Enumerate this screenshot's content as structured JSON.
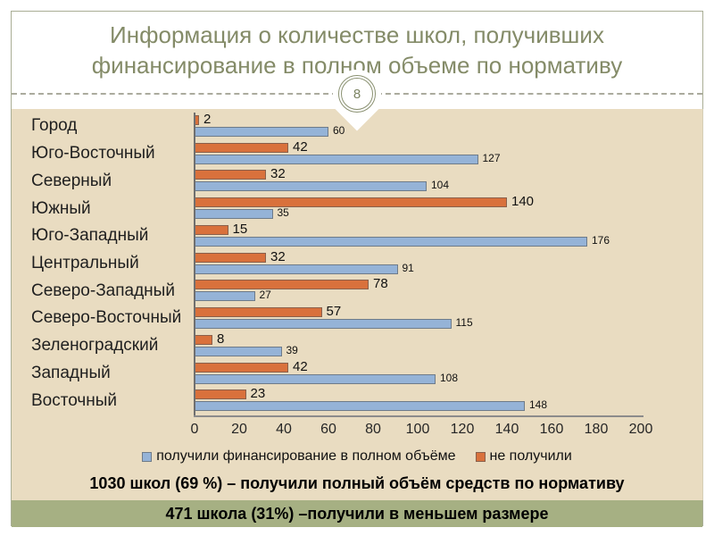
{
  "slide": {
    "title_line1": "Информация о количестве школ, получивших",
    "title_line2": "финансирование в полном объеме по нормативу",
    "page_number": "8"
  },
  "chart_data": {
    "type": "bar",
    "orientation": "horizontal",
    "title": "",
    "categories": [
      "Город",
      "Юго-Восточный",
      "Северный",
      "Южный",
      "Юго-Западный",
      "Центральный",
      "Северо-Западный",
      "Северо-Восточный",
      "Зеленоградский",
      "Западный",
      "Восточный"
    ],
    "series": [
      {
        "name": "получили финансирование в полном объёме",
        "color": "#95B3D7",
        "values": [
          60,
          127,
          104,
          35,
          176,
          91,
          27,
          115,
          39,
          108,
          148
        ]
      },
      {
        "name": "не получили",
        "color": "#D9713C",
        "values": [
          2,
          42,
          32,
          140,
          15,
          32,
          78,
          57,
          8,
          42,
          23
        ]
      }
    ],
    "xlim": [
      0,
      200
    ],
    "xticks": [
      0,
      20,
      40,
      60,
      80,
      100,
      120,
      140,
      160,
      180,
      200
    ],
    "legend_position": "bottom",
    "grid": false
  },
  "captions": {
    "summary_full": "1030 школ (69 %) – получили полный объём средств по нормативу",
    "summary_partial": "471 школа (31%) –получили в меньшем размере"
  },
  "colors": {
    "bar_full": "#95B3D7",
    "bar_not": "#D9713C",
    "content_bg": "#E9DCC1",
    "band_bg": "#A6B083",
    "title_text": "#848B68"
  }
}
